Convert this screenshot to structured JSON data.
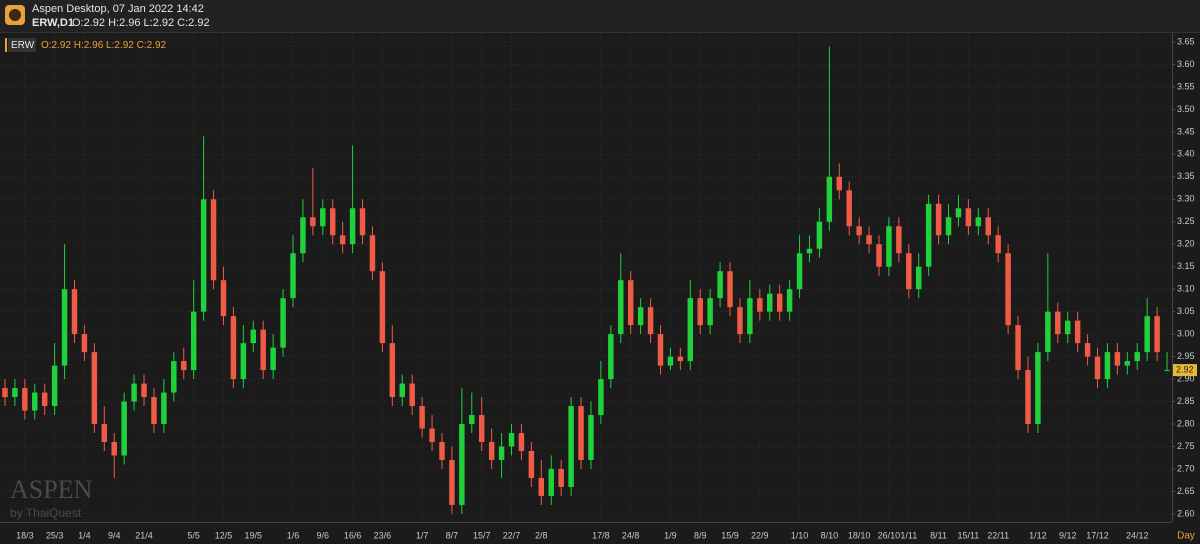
{
  "header": {
    "title": "Aspen Desktop, 07 Jan 2022 14:42",
    "symbol_line": "ERW,D1",
    "ohlc": "O:2.92 H:2.96 L:2.92 C:2.92"
  },
  "watermark": {
    "brand": "ASPEN",
    "byline": "by ThaiQuest"
  },
  "chart_data": {
    "type": "candlestick",
    "symbol": "ERW",
    "legend_ohlc": "O:2.92 H:2.96 L:2.92 C:2.92",
    "x_axis_label": "Day",
    "up_color": "#1fd13a",
    "down_color": "#ef5b45",
    "grid": true,
    "ylim": [
      2.582,
      3.67
    ],
    "yticks": [
      {
        "value": 2.6,
        "label": "2.60"
      },
      2.65,
      {
        "value": 2.7,
        "label": "2.70"
      },
      2.75,
      {
        "value": 2.8,
        "label": "2.80"
      },
      2.85,
      {
        "value": 2.9,
        "label": "2.90"
      },
      2.95,
      {
        "value": 3.0,
        "label": "3.00"
      },
      3.05,
      {
        "value": 3.1,
        "label": "3.10"
      },
      3.15,
      {
        "value": 3.2,
        "label": "3.20"
      },
      3.25,
      {
        "value": 3.3,
        "label": "3.30"
      },
      3.35,
      {
        "value": 3.4,
        "label": "3.40"
      },
      3.45,
      {
        "value": 3.5,
        "label": "3.50"
      },
      3.55,
      {
        "value": 3.6,
        "label": "3.60"
      },
      3.65
    ],
    "categories": [
      null,
      null,
      "18/3",
      null,
      null,
      "25/3",
      null,
      null,
      "1/4",
      null,
      null,
      "9/4",
      null,
      null,
      "21/4",
      null,
      null,
      null,
      null,
      "5/5",
      null,
      null,
      "12/5",
      null,
      null,
      "19/5",
      null,
      null,
      null,
      "1/6",
      null,
      null,
      "9/6",
      null,
      null,
      "16/6",
      null,
      null,
      "23/6",
      null,
      null,
      null,
      "1/7",
      null,
      null,
      "8/7",
      null,
      null,
      "15/7",
      null,
      null,
      "22/7",
      null,
      null,
      "2/8",
      null,
      null,
      null,
      null,
      null,
      "17/8",
      null,
      null,
      "24/8",
      null,
      null,
      null,
      "1/9",
      null,
      null,
      "8/9",
      null,
      null,
      "15/9",
      null,
      null,
      "22/9",
      null,
      null,
      null,
      "1/10",
      null,
      null,
      "8/10",
      null,
      null,
      "18/10",
      null,
      null,
      "26/10",
      null,
      "1/11",
      null,
      null,
      "8/11",
      null,
      null,
      "15/11",
      null,
      null,
      "22/11",
      null,
      null,
      null,
      "1/12",
      null,
      null,
      "9/12",
      null,
      null,
      "17/12",
      null,
      null,
      null,
      "24/12",
      null,
      null,
      null
    ],
    "open": [
      2.88,
      2.86,
      2.88,
      2.83,
      2.87,
      2.84,
      2.93,
      3.1,
      3.0,
      2.96,
      2.8,
      2.76,
      2.73,
      2.85,
      2.89,
      2.86,
      2.8,
      2.87,
      2.94,
      2.92,
      3.05,
      3.3,
      3.12,
      3.04,
      2.9,
      2.98,
      3.01,
      2.92,
      2.97,
      3.08,
      3.18,
      3.26,
      3.24,
      3.28,
      3.22,
      3.2,
      3.28,
      3.22,
      3.14,
      2.98,
      2.86,
      2.89,
      2.84,
      2.79,
      2.76,
      2.72,
      2.62,
      2.8,
      2.82,
      2.76,
      2.72,
      2.75,
      2.78,
      2.74,
      2.68,
      2.64,
      2.7,
      2.66,
      2.84,
      2.72,
      2.82,
      2.9,
      3.0,
      3.12,
      3.02,
      3.06,
      3.0,
      2.93,
      2.95,
      2.94,
      3.08,
      3.02,
      3.08,
      3.14,
      3.06,
      3.0,
      3.08,
      3.05,
      3.09,
      3.05,
      3.1,
      3.18,
      3.19,
      3.25,
      3.35,
      3.32,
      3.24,
      3.22,
      3.2,
      3.15,
      3.24,
      3.18,
      3.1,
      3.15,
      3.29,
      3.22,
      3.26,
      3.28,
      3.24,
      3.26,
      3.22,
      3.18,
      3.02,
      2.92,
      2.8,
      2.96,
      3.05,
      3.0,
      3.03,
      2.98,
      2.95,
      2.9,
      2.96,
      2.93,
      2.94,
      2.96,
      3.04,
      2.92
    ],
    "high": [
      2.9,
      2.9,
      2.9,
      2.89,
      2.89,
      2.98,
      3.2,
      3.12,
      3.02,
      2.98,
      2.84,
      2.78,
      2.87,
      2.91,
      2.91,
      2.88,
      2.9,
      2.96,
      2.97,
      3.12,
      3.44,
      3.32,
      3.15,
      3.06,
      3.02,
      3.03,
      3.03,
      3.0,
      3.1,
      3.22,
      3.3,
      3.37,
      3.3,
      3.3,
      3.25,
      3.42,
      3.3,
      3.24,
      3.16,
      3.02,
      2.91,
      2.91,
      2.86,
      2.82,
      2.78,
      2.75,
      2.88,
      2.87,
      2.86,
      2.79,
      2.78,
      2.8,
      2.8,
      2.76,
      2.72,
      2.73,
      2.72,
      2.86,
      2.86,
      2.85,
      2.94,
      3.02,
      3.18,
      3.14,
      3.08,
      3.08,
      3.02,
      2.97,
      2.97,
      3.12,
      3.1,
      3.1,
      3.16,
      3.16,
      3.08,
      3.12,
      3.1,
      3.11,
      3.11,
      3.12,
      3.22,
      3.22,
      3.28,
      3.64,
      3.38,
      3.34,
      3.26,
      3.24,
      3.22,
      3.26,
      3.26,
      3.2,
      3.18,
      3.31,
      3.31,
      3.29,
      3.31,
      3.3,
      3.28,
      3.28,
      3.24,
      3.2,
      3.04,
      2.95,
      2.98,
      3.18,
      3.07,
      3.05,
      3.05,
      3.0,
      2.97,
      2.98,
      2.98,
      2.96,
      2.98,
      3.08,
      3.06,
      2.96
    ],
    "low": [
      2.84,
      2.84,
      2.81,
      2.81,
      2.82,
      2.82,
      2.9,
      2.98,
      2.94,
      2.78,
      2.74,
      2.68,
      2.71,
      2.83,
      2.84,
      2.78,
      2.78,
      2.85,
      2.9,
      2.9,
      3.03,
      3.1,
      3.02,
      2.88,
      2.88,
      2.96,
      2.9,
      2.9,
      2.95,
      3.06,
      3.16,
      3.22,
      3.22,
      3.2,
      3.18,
      3.18,
      3.2,
      3.12,
      2.96,
      2.84,
      2.84,
      2.82,
      2.77,
      2.74,
      2.7,
      2.6,
      2.6,
      2.78,
      2.74,
      2.7,
      2.68,
      2.73,
      2.72,
      2.66,
      2.62,
      2.62,
      2.64,
      2.64,
      2.7,
      2.7,
      2.8,
      2.88,
      2.98,
      3.0,
      3.0,
      2.98,
      2.91,
      2.92,
      2.92,
      2.92,
      3.0,
      3.0,
      3.06,
      3.04,
      2.98,
      2.98,
      3.03,
      3.03,
      3.03,
      3.03,
      3.08,
      3.16,
      3.17,
      3.23,
      3.3,
      3.22,
      3.2,
      3.18,
      3.13,
      3.13,
      3.16,
      3.08,
      3.08,
      3.13,
      3.2,
      3.2,
      3.24,
      3.22,
      3.22,
      3.2,
      3.16,
      3.0,
      2.9,
      2.78,
      2.78,
      2.94,
      2.98,
      2.98,
      2.96,
      2.93,
      2.88,
      2.88,
      2.91,
      2.91,
      2.92,
      2.94,
      2.94,
      2.92
    ],
    "close": [
      2.86,
      2.88,
      2.83,
      2.87,
      2.84,
      2.93,
      3.1,
      3.0,
      2.96,
      2.8,
      2.76,
      2.73,
      2.85,
      2.89,
      2.86,
      2.8,
      2.87,
      2.94,
      2.92,
      3.05,
      3.3,
      3.12,
      3.04,
      2.9,
      2.98,
      3.01,
      2.92,
      2.97,
      3.08,
      3.18,
      3.26,
      3.24,
      3.28,
      3.22,
      3.2,
      3.28,
      3.22,
      3.14,
      2.98,
      2.86,
      2.89,
      2.84,
      2.79,
      2.76,
      2.72,
      2.62,
      2.8,
      2.82,
      2.76,
      2.72,
      2.75,
      2.78,
      2.74,
      2.68,
      2.64,
      2.7,
      2.66,
      2.84,
      2.72,
      2.82,
      2.9,
      3.0,
      3.12,
      3.02,
      3.06,
      3.0,
      2.93,
      2.95,
      2.94,
      3.08,
      3.02,
      3.08,
      3.14,
      3.06,
      3.0,
      3.08,
      3.05,
      3.09,
      3.05,
      3.1,
      3.18,
      3.19,
      3.25,
      3.35,
      3.32,
      3.24,
      3.22,
      3.2,
      3.15,
      3.24,
      3.18,
      3.1,
      3.15,
      3.29,
      3.22,
      3.26,
      3.28,
      3.24,
      3.26,
      3.22,
      3.18,
      3.02,
      2.92,
      2.8,
      2.96,
      3.05,
      3.0,
      3.03,
      2.98,
      2.95,
      2.9,
      2.96,
      2.93,
      2.94,
      2.96,
      3.04,
      2.96,
      2.92
    ]
  }
}
